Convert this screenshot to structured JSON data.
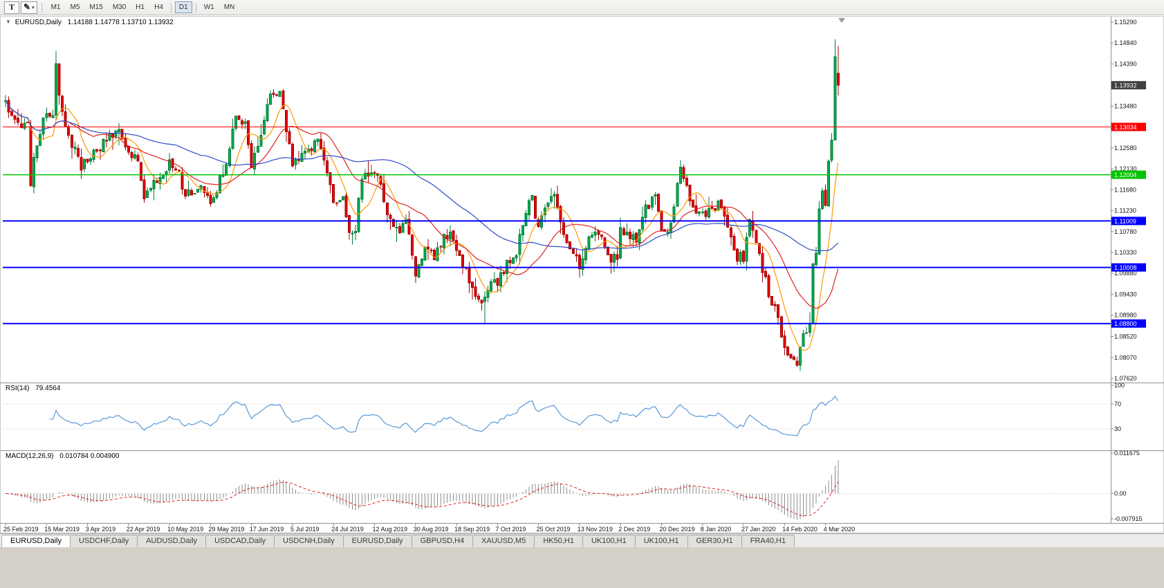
{
  "toolbar": {
    "text_tool_label": "T",
    "draw_tool_icon": "✎",
    "dropdown_caret": "▾",
    "timeframes": [
      "M1",
      "M5",
      "M15",
      "M30",
      "H1",
      "H4",
      "D1",
      "W1",
      "MN"
    ],
    "active_timeframe": "D1"
  },
  "chart_data": {
    "type": "candlestick",
    "symbol_title": "EURUSD,Daily",
    "collapse_icon": "▼",
    "ohlc_text": "1.14188 1.14778 1.13710 1.13932",
    "last_ohlc": {
      "open": 1.14188,
      "high": 1.14778,
      "low": 1.1371,
      "close": 1.13932
    },
    "candle_count": 265,
    "anchors": [
      [
        0,
        1.136
      ],
      [
        2,
        1.133
      ],
      [
        5,
        1.1307
      ],
      [
        7,
        1.1306
      ],
      [
        8,
        1.1177
      ],
      [
        9,
        1.1235
      ],
      [
        12,
        1.132
      ],
      [
        13,
        1.1325
      ],
      [
        15,
        1.1336
      ],
      [
        16,
        1.1438
      ],
      [
        17,
        1.137
      ],
      [
        19,
        1.1295
      ],
      [
        22,
        1.1255
      ],
      [
        24,
        1.122
      ],
      [
        26,
        1.123
      ],
      [
        29,
        1.125
      ],
      [
        31,
        1.127
      ],
      [
        35,
        1.1295
      ],
      [
        37,
        1.128
      ],
      [
        39,
        1.1258
      ],
      [
        42,
        1.122
      ],
      [
        44,
        1.115
      ],
      [
        47,
        1.118
      ],
      [
        50,
        1.1195
      ],
      [
        52,
        1.123
      ],
      [
        55,
        1.12
      ],
      [
        57,
        1.1158
      ],
      [
        60,
        1.117
      ],
      [
        62,
        1.118
      ],
      [
        65,
        1.1135
      ],
      [
        67,
        1.117
      ],
      [
        70,
        1.1225
      ],
      [
        73,
        1.1335
      ],
      [
        76,
        1.131
      ],
      [
        78,
        1.1225
      ],
      [
        81,
        1.129
      ],
      [
        84,
        1.138
      ],
      [
        87,
        1.137
      ],
      [
        89,
        1.13
      ],
      [
        91,
        1.1228
      ],
      [
        95,
        1.1255
      ],
      [
        99,
        1.127
      ],
      [
        102,
        1.1215
      ],
      [
        104,
        1.114
      ],
      [
        107,
        1.1143
      ],
      [
        109,
        1.1077
      ],
      [
        111,
        1.1085
      ],
      [
        113,
        1.12
      ],
      [
        117,
        1.121
      ],
      [
        119,
        1.117
      ],
      [
        122,
        1.11
      ],
      [
        125,
        1.108
      ],
      [
        127,
        1.11
      ],
      [
        130,
        1.099
      ],
      [
        133,
        1.1035
      ],
      [
        136,
        1.1028
      ],
      [
        139,
        1.1065
      ],
      [
        141,
        1.1073
      ],
      [
        143,
        1.103
      ],
      [
        146,
        1.099
      ],
      [
        149,
        1.094
      ],
      [
        152,
        1.093
      ],
      [
        154,
        1.0965
      ],
      [
        156,
        1.097
      ],
      [
        159,
        1.1005
      ],
      [
        162,
        1.1035
      ],
      [
        165,
        1.112
      ],
      [
        167,
        1.115
      ],
      [
        169,
        1.108
      ],
      [
        172,
        1.115
      ],
      [
        174,
        1.1166
      ],
      [
        177,
        1.1068
      ],
      [
        180,
        1.1033
      ],
      [
        182,
        1.1005
      ],
      [
        185,
        1.107
      ],
      [
        188,
        1.1077
      ],
      [
        191,
        1.102
      ],
      [
        194,
        1.1018
      ],
      [
        195,
        1.1078
      ],
      [
        197,
        1.1078
      ],
      [
        200,
        1.1065
      ],
      [
        203,
        1.113
      ],
      [
        206,
        1.115
      ],
      [
        208,
        1.1078
      ],
      [
        211,
        1.1088
      ],
      [
        214,
        1.1213
      ],
      [
        216,
        1.1172
      ],
      [
        219,
        1.112
      ],
      [
        221,
        1.111
      ],
      [
        224,
        1.1127
      ],
      [
        226,
        1.1136
      ],
      [
        229,
        1.1084
      ],
      [
        232,
        1.1025
      ],
      [
        234,
        1.1022
      ],
      [
        236,
        1.1094
      ],
      [
        238,
        1.106
      ],
      [
        240,
        1.0998
      ],
      [
        242,
        1.0945
      ],
      [
        244,
        1.091
      ],
      [
        247,
        1.0831
      ],
      [
        249,
        1.0806
      ],
      [
        251,
        1.0786
      ],
      [
        253,
        1.085
      ],
      [
        255,
        1.088
      ],
      [
        256,
        1.0998
      ],
      [
        257,
        1.1026
      ],
      [
        258,
        1.1134
      ],
      [
        259,
        1.1173
      ],
      [
        260,
        1.1134
      ],
      [
        261,
        1.1236
      ],
      [
        262,
        1.1285
      ],
      [
        263,
        1.1446
      ],
      [
        264,
        1.13932
      ]
    ],
    "price_axis_ticks": [
      {
        "label": "1.15290",
        "price": 1.1529
      },
      {
        "label": "1.14840",
        "price": 1.1484
      },
      {
        "label": "1.14390",
        "price": 1.1439
      },
      {
        "label": "1.13480",
        "price": 1.1348
      },
      {
        "label": "1.12580",
        "price": 1.1258
      },
      {
        "label": "1.12130",
        "price": 1.1213
      },
      {
        "label": "1.11680",
        "price": 1.1168
      },
      {
        "label": "1.11230",
        "price": 1.1123
      },
      {
        "label": "1.10780",
        "price": 1.1078
      },
      {
        "label": "1.10330",
        "price": 1.1033
      },
      {
        "label": "1.09880",
        "price": 1.0988
      },
      {
        "label": "1.09430",
        "price": 1.0943
      },
      {
        "label": "1.08980",
        "price": 1.0898
      },
      {
        "label": "1.08520",
        "price": 1.0852
      },
      {
        "label": "1.08070",
        "price": 1.0807
      },
      {
        "label": "1.07620",
        "price": 1.0762
      }
    ],
    "levels": [
      {
        "label": "1.13034",
        "price": 1.13034,
        "color": "#FF0000",
        "thickness": 1
      },
      {
        "label": "1.12004",
        "price": 1.12004,
        "color": "#00C400",
        "thickness": 1.5
      },
      {
        "label": "1.11009",
        "price": 1.11009,
        "color": "#0000FF",
        "thickness": 2
      },
      {
        "label": "1.10008",
        "price": 1.10008,
        "color": "#0000FF",
        "thickness": 2
      },
      {
        "label": "1.08800",
        "price": 1.088,
        "color": "#0000FF",
        "thickness": 2
      }
    ],
    "current_badge": {
      "label": "1.13932",
      "price": 1.13932,
      "color": "#404040"
    },
    "date_labels": [
      "25 Feb 2019",
      "15 Mar 2019",
      "3 Apr 2019",
      "22 Apr 2019",
      "10 May 2019",
      "29 May 2019",
      "17 Jun 2019",
      "5 Jul 2019",
      "24 Jul 2019",
      "12 Aug 2019",
      "30 Aug 2019",
      "18 Sep 2019",
      "7 Oct 2019",
      "25 Oct 2019",
      "13 Nov 2019",
      "2 Dec 2019",
      "20 Dec 2019",
      "8 Jan 2020",
      "27 Jan 2020",
      "14 Feb 2020",
      "4 Mar 2020"
    ],
    "moving_averages": [
      {
        "name": "fast",
        "period": 8,
        "color": "#FF9800"
      },
      {
        "name": "mid",
        "period": 21,
        "color": "#DD2222"
      },
      {
        "name": "slow",
        "period": 55,
        "color": "#2F4BC8"
      }
    ],
    "colors": {
      "up_fill": "#00B050",
      "up_stroke": "#007A36",
      "down_fill": "#E60000",
      "down_stroke": "#A80000",
      "background": "#FFFFFF",
      "separator": "#909090"
    },
    "rsi": {
      "title": "RSI(14)",
      "period": 14,
      "value": "79.4564",
      "color": "#4A90D2",
      "scale": [
        {
          "v": 100,
          "label": "100"
        },
        {
          "v": 70,
          "label": "70"
        },
        {
          "v": 30,
          "label": "30"
        }
      ],
      "guides": [
        70,
        30
      ]
    },
    "macd": {
      "title": "MACD(12,26,9)",
      "values": "0.010784 0.004900",
      "fast": 12,
      "slow": 26,
      "signal": 9,
      "hist_color": "#8C8C8C",
      "signal_color": "#E02020",
      "scale": [
        {
          "v": 0.011675,
          "label": "0.011675"
        },
        {
          "v": 0,
          "label": "0.00"
        },
        {
          "v": -0.007915,
          "label": "-0.007915"
        }
      ]
    }
  },
  "tabs": [
    "EURUSD,Daily",
    "USDCHF,Daily",
    "AUDUSD,Daily",
    "USDCAD,Daily",
    "USDCNH,Daily",
    "EURUSD,Daily",
    "GBPUSD,H4",
    "XAUUSD,M5",
    "HK50,H1",
    "UK100,H1",
    "UK100,H1",
    "GER30,H1",
    "FRA40,H1"
  ],
  "active_tab_index": 0
}
